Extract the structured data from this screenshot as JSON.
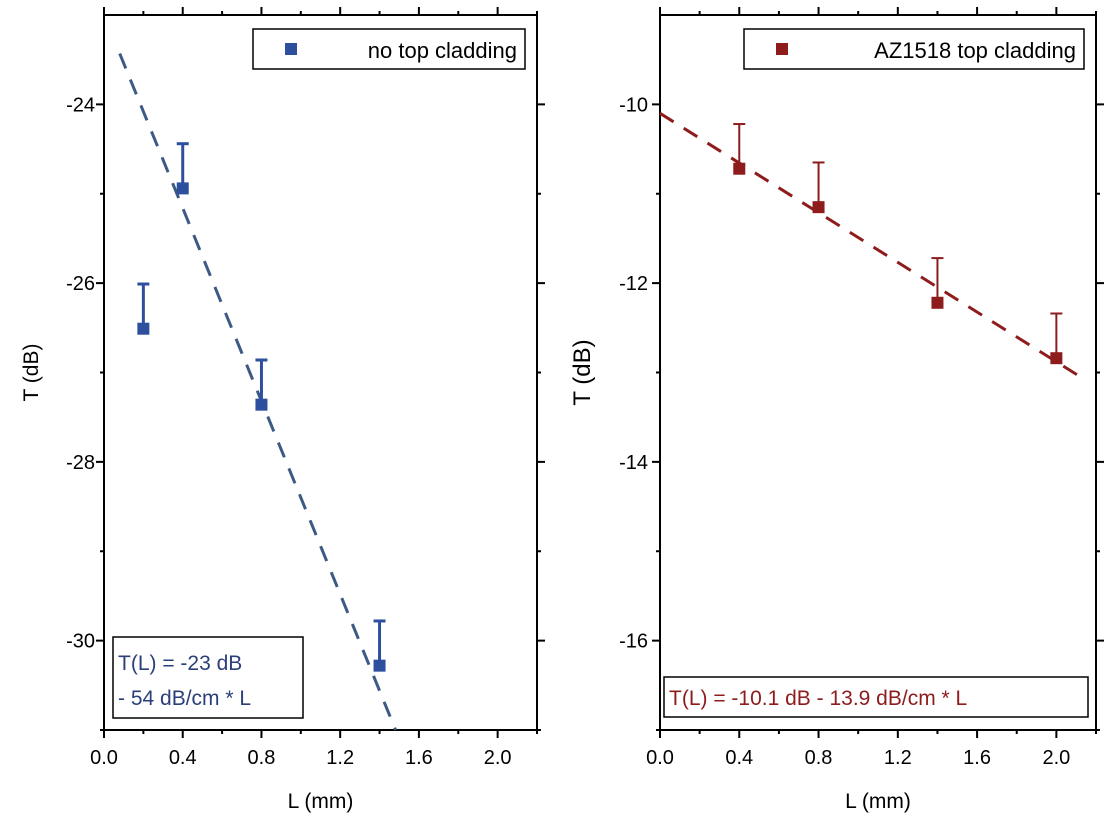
{
  "chart_data": [
    {
      "type": "scatter",
      "xlabel": "L (mm)",
      "ylabel": "T (dB)",
      "xlim": [
        0,
        2.2
      ],
      "ylim": [
        -31,
        -23
      ],
      "xticks": [
        "0.0",
        "0.4",
        "0.8",
        "1.2",
        "1.6",
        "2.0"
      ],
      "yticks": [
        "-24",
        "-26",
        "-28",
        "-30"
      ],
      "grid": false,
      "legend_position": "top-right",
      "series": [
        {
          "name": "no top cladding",
          "color": "#2d4f9e",
          "x": [
            0.2,
            0.4,
            0.8,
            1.4
          ],
          "y": [
            -26.51,
            -24.94,
            -27.36,
            -30.28
          ],
          "error_upper": [
            0.5,
            0.5,
            0.5,
            0.5
          ]
        }
      ],
      "fit": {
        "intercept": -23,
        "slope_per_mm": -5.4,
        "x_range": [
          0.08,
          1.6
        ],
        "color": "#3c5a84",
        "style": "dashed"
      },
      "annotation": {
        "line1": "T(L) =  -23 dB",
        "line2": "- 54 dB/cm * L",
        "color": "#2b3f78",
        "position": "bottom-left"
      }
    },
    {
      "type": "scatter",
      "xlabel": "L (mm)",
      "ylabel": "T (dB)",
      "xlim": [
        0,
        2.2
      ],
      "ylim": [
        -17,
        -9
      ],
      "xticks": [
        "0.0",
        "0.4",
        "0.8",
        "1.2",
        "1.6",
        "2.0"
      ],
      "yticks": [
        "-10",
        "-12",
        "-14",
        "-16"
      ],
      "grid": false,
      "legend_position": "top-right",
      "series": [
        {
          "name": "AZ1518 top cladding",
          "color": "#8e1c1c",
          "x": [
            0.4,
            0.8,
            1.4,
            2.0
          ],
          "y": [
            -10.72,
            -11.15,
            -12.22,
            -12.84
          ],
          "error_upper": [
            0.5,
            0.5,
            0.5,
            0.5
          ]
        }
      ],
      "fit": {
        "intercept": -10.1,
        "slope_per_mm": -1.39,
        "x_range": [
          0,
          2.15
        ],
        "color": "#8e1c1c",
        "style": "dashed"
      },
      "annotation": {
        "line1": "T(L) =  -10.1 dB - 13.9 dB/cm * L",
        "color": "#8e1c1c",
        "position": "bottom"
      }
    }
  ]
}
